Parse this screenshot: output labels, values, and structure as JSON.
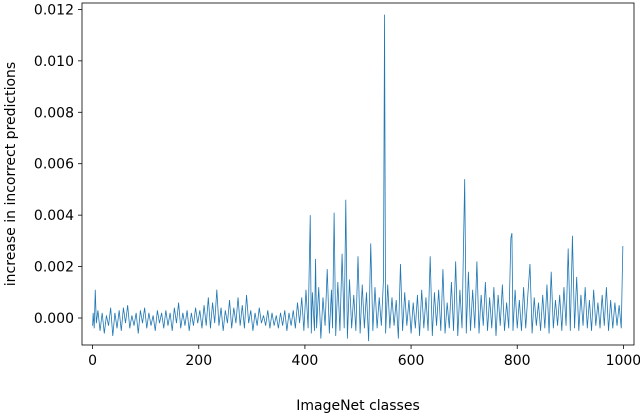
{
  "chart_data": {
    "type": "line",
    "xlabel": "ImageNet classes",
    "ylabel": "increase in incorrect predictions",
    "xlim": [
      -20,
      1020
    ],
    "ylim": [
      -0.00105,
      0.01225
    ],
    "xticks": [
      0,
      200,
      400,
      600,
      800,
      1000
    ],
    "yticks": [
      0.0,
      0.002,
      0.004,
      0.006,
      0.008,
      0.01,
      0.012
    ],
    "ytick_labels": [
      "0.000",
      "0.002",
      "0.004",
      "0.006",
      "0.008",
      "0.010",
      "0.012"
    ],
    "grid": false,
    "line_color": "#1f77b4",
    "series": [
      {
        "points": [
          [
            0,
            -0.0003
          ],
          [
            1,
            0.0002
          ],
          [
            3,
            -0.0004
          ],
          [
            5,
            0.0011
          ],
          [
            7,
            -0.0002
          ],
          [
            10,
            0.0003
          ],
          [
            14,
            -0.0005
          ],
          [
            18,
            0.0002
          ],
          [
            22,
            -0.0006
          ],
          [
            26,
            0.0001
          ],
          [
            30,
            -0.0003
          ],
          [
            34,
            0.0004
          ],
          [
            38,
            -0.0007
          ],
          [
            42,
            0.0002
          ],
          [
            46,
            -0.0004
          ],
          [
            50,
            0.0003
          ],
          [
            54,
            -0.0005
          ],
          [
            58,
            0.0004
          ],
          [
            62,
            -0.0002
          ],
          [
            66,
            0.0005
          ],
          [
            70,
            -0.0004
          ],
          [
            74,
            0.0001
          ],
          [
            78,
            -0.0003
          ],
          [
            82,
            0.0002
          ],
          [
            86,
            -0.0006
          ],
          [
            90,
            0.0003
          ],
          [
            94,
            -0.0002
          ],
          [
            98,
            0.0004
          ],
          [
            102,
            -0.0004
          ],
          [
            106,
            0.0002
          ],
          [
            110,
            -0.0003
          ],
          [
            114,
            0.0001
          ],
          [
            118,
            -0.0005
          ],
          [
            122,
            0.0003
          ],
          [
            126,
            -0.0002
          ],
          [
            130,
            0.0002
          ],
          [
            134,
            -0.0004
          ],
          [
            138,
            0.0003
          ],
          [
            142,
            -0.0003
          ],
          [
            146,
            0.0002
          ],
          [
            150,
            -0.0005
          ],
          [
            154,
            0.0004
          ],
          [
            158,
            -0.0002
          ],
          [
            162,
            0.0006
          ],
          [
            166,
            -0.0004
          ],
          [
            170,
            0.0002
          ],
          [
            174,
            -0.0003
          ],
          [
            178,
            0.0003
          ],
          [
            182,
            -0.0005
          ],
          [
            186,
            0.0002
          ],
          [
            190,
            -0.0003
          ],
          [
            194,
            0.0004
          ],
          [
            198,
            -0.0002
          ],
          [
            202,
            0.0003
          ],
          [
            206,
            -0.0004
          ],
          [
            210,
            0.0005
          ],
          [
            214,
            -0.0003
          ],
          [
            218,
            0.0008
          ],
          [
            222,
            -0.0004
          ],
          [
            226,
            0.0006
          ],
          [
            230,
            -0.0002
          ],
          [
            234,
            0.0011
          ],
          [
            238,
            -0.0003
          ],
          [
            242,
            0.0004
          ],
          [
            246,
            -0.0005
          ],
          [
            250,
            0.0003
          ],
          [
            254,
            -0.0002
          ],
          [
            258,
            0.0007
          ],
          [
            262,
            -0.0004
          ],
          [
            266,
            0.0004
          ],
          [
            270,
            -0.0002
          ],
          [
            274,
            0.0008
          ],
          [
            278,
            -0.0003
          ],
          [
            282,
            0.0005
          ],
          [
            286,
            -0.0004
          ],
          [
            290,
            0.0009
          ],
          [
            294,
            -0.0002
          ],
          [
            298,
            0.0003
          ],
          [
            302,
            -0.0005
          ],
          [
            306,
            0.0002
          ],
          [
            310,
            -0.0003
          ],
          [
            314,
            0.0004
          ],
          [
            318,
            -0.0002
          ],
          [
            322,
            0.0001
          ],
          [
            326,
            -0.0003
          ],
          [
            330,
            0.0003
          ],
          [
            334,
            -0.0004
          ],
          [
            338,
            0.0002
          ],
          [
            342,
            -0.0003
          ],
          [
            346,
            0.0001
          ],
          [
            350,
            -0.0004
          ],
          [
            354,
            0.0002
          ],
          [
            358,
            -0.0003
          ],
          [
            362,
            0.0003
          ],
          [
            366,
            -0.0005
          ],
          [
            370,
            0.0002
          ],
          [
            374,
            -0.0003
          ],
          [
            378,
            0.0003
          ],
          [
            382,
            -0.0004
          ],
          [
            386,
            0.0006
          ],
          [
            390,
            -0.0002
          ],
          [
            394,
            0.0008
          ],
          [
            398,
            -0.0005
          ],
          [
            402,
            0.0011
          ],
          [
            406,
            -0.0004
          ],
          [
            410,
            0.004
          ],
          [
            412,
            -0.0006
          ],
          [
            414,
            0.001
          ],
          [
            418,
            -0.0005
          ],
          [
            420,
            0.0023
          ],
          [
            422,
            -0.0004
          ],
          [
            426,
            0.0012
          ],
          [
            430,
            -0.0008
          ],
          [
            434,
            0.0008
          ],
          [
            438,
            -0.0003
          ],
          [
            442,
            0.0019
          ],
          [
            446,
            -0.0006
          ],
          [
            450,
            0.0011
          ],
          [
            452,
            -0.0004
          ],
          [
            455,
            0.0041
          ],
          [
            458,
            -0.0007
          ],
          [
            462,
            0.0014
          ],
          [
            466,
            -0.0005
          ],
          [
            470,
            0.0025
          ],
          [
            474,
            -0.0004
          ],
          [
            477,
            0.0046
          ],
          [
            480,
            -0.0008
          ],
          [
            484,
            0.0015
          ],
          [
            488,
            -0.0004
          ],
          [
            492,
            0.0009
          ],
          [
            496,
            -0.0005
          ],
          [
            500,
            0.0024
          ],
          [
            504,
            -0.0006
          ],
          [
            508,
            0.0013
          ],
          [
            512,
            -0.0004
          ],
          [
            516,
            0.001
          ],
          [
            520,
            -0.0009
          ],
          [
            524,
            0.0029
          ],
          [
            528,
            -0.0005
          ],
          [
            532,
            0.0012
          ],
          [
            536,
            -0.0004
          ],
          [
            540,
            0.0008
          ],
          [
            544,
            -0.0003
          ],
          [
            548,
            0.0015
          ],
          [
            550,
            0.0118
          ],
          [
            552,
            -0.0006
          ],
          [
            556,
            0.0013
          ],
          [
            560,
            -0.0004
          ],
          [
            564,
            0.0008
          ],
          [
            568,
            -0.0003
          ],
          [
            572,
            0.0007
          ],
          [
            576,
            -0.0008
          ],
          [
            580,
            0.0021
          ],
          [
            584,
            -0.0005
          ],
          [
            588,
            0.001
          ],
          [
            592,
            -0.0003
          ],
          [
            596,
            0.0007
          ],
          [
            600,
            -0.0006
          ],
          [
            604,
            0.0006
          ],
          [
            608,
            -0.0004
          ],
          [
            612,
            0.0009
          ],
          [
            616,
            -0.0007
          ],
          [
            620,
            0.0011
          ],
          [
            624,
            -0.0004
          ],
          [
            628,
            0.0008
          ],
          [
            632,
            -0.0005
          ],
          [
            636,
            0.0024
          ],
          [
            640,
            -0.0007
          ],
          [
            644,
            0.001
          ],
          [
            648,
            -0.0003
          ],
          [
            652,
            0.0011
          ],
          [
            656,
            -0.0005
          ],
          [
            660,
            0.0019
          ],
          [
            664,
            -0.0006
          ],
          [
            668,
            0.0006
          ],
          [
            672,
            -0.0004
          ],
          [
            676,
            0.0014
          ],
          [
            680,
            -0.0005
          ],
          [
            684,
            0.0022
          ],
          [
            688,
            -0.0007
          ],
          [
            692,
            0.0011
          ],
          [
            696,
            -0.0004
          ],
          [
            701,
            0.0054
          ],
          [
            704,
            -0.0006
          ],
          [
            708,
            0.0018
          ],
          [
            712,
            -0.0005
          ],
          [
            716,
            0.0011
          ],
          [
            720,
            -0.0004
          ],
          [
            724,
            0.0022
          ],
          [
            728,
            -0.0006
          ],
          [
            732,
            0.0009
          ],
          [
            736,
            -0.0003
          ],
          [
            740,
            0.0014
          ],
          [
            744,
            -0.0005
          ],
          [
            748,
            0.0008
          ],
          [
            752,
            -0.0004
          ],
          [
            756,
            0.0012
          ],
          [
            760,
            -0.0007
          ],
          [
            764,
            0.0009
          ],
          [
            768,
            -0.0003
          ],
          [
            772,
            0.0013
          ],
          [
            776,
            -0.0005
          ],
          [
            780,
            0.0006
          ],
          [
            784,
            -0.0004
          ],
          [
            788,
            0.0031
          ],
          [
            790,
            0.0033
          ],
          [
            792,
            -0.0005
          ],
          [
            796,
            0.0011
          ],
          [
            800,
            -0.0004
          ],
          [
            804,
            0.0007
          ],
          [
            808,
            -0.0005
          ],
          [
            812,
            0.0012
          ],
          [
            816,
            -0.0004
          ],
          [
            820,
            0.0009
          ],
          [
            824,
            0.0021
          ],
          [
            828,
            -0.0006
          ],
          [
            832,
            0.0008
          ],
          [
            836,
            -0.0003
          ],
          [
            840,
            0.0006
          ],
          [
            844,
            -0.0005
          ],
          [
            848,
            0.0009
          ],
          [
            852,
            -0.0004
          ],
          [
            856,
            0.0013
          ],
          [
            860,
            -0.0006
          ],
          [
            864,
            0.0018
          ],
          [
            868,
            -0.0004
          ],
          [
            872,
            0.0007
          ],
          [
            876,
            -0.0003
          ],
          [
            880,
            0.0009
          ],
          [
            884,
            -0.0005
          ],
          [
            888,
            0.0012
          ],
          [
            892,
            -0.0003
          ],
          [
            896,
            0.0027
          ],
          [
            900,
            -0.0005
          ],
          [
            904,
            0.0032
          ],
          [
            908,
            -0.0004
          ],
          [
            912,
            0.0016
          ],
          [
            916,
            -0.0005
          ],
          [
            920,
            0.0009
          ],
          [
            924,
            -0.0003
          ],
          [
            928,
            0.0012
          ],
          [
            932,
            -0.0004
          ],
          [
            936,
            0.0007
          ],
          [
            940,
            -0.0005
          ],
          [
            944,
            0.0011
          ],
          [
            948,
            -0.0003
          ],
          [
            952,
            0.0006
          ],
          [
            956,
            -0.0004
          ],
          [
            960,
            0.0009
          ],
          [
            964,
            -0.0003
          ],
          [
            968,
            0.0012
          ],
          [
            972,
            -0.0005
          ],
          [
            976,
            0.0007
          ],
          [
            980,
            -0.0004
          ],
          [
            984,
            0.0006
          ],
          [
            988,
            -0.0003
          ],
          [
            992,
            0.0005
          ],
          [
            996,
            -0.0004
          ],
          [
            999,
            0.0028
          ]
        ]
      }
    ]
  }
}
